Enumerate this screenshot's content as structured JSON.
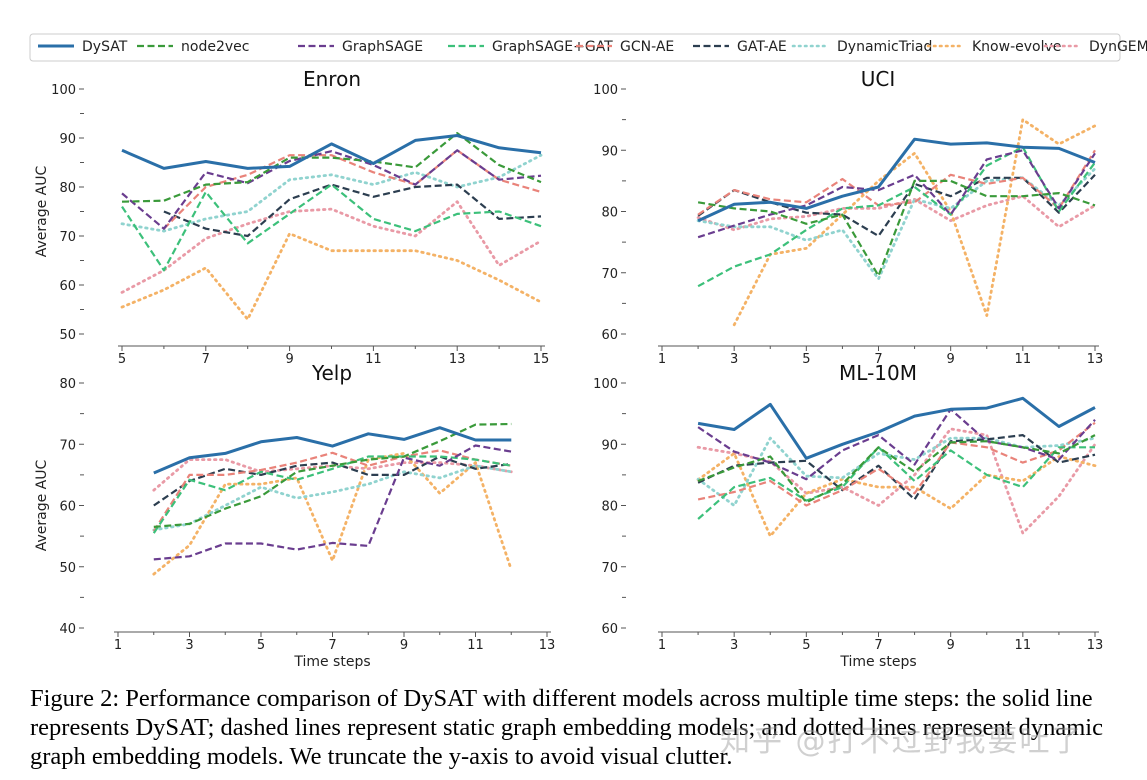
{
  "legend": [
    {
      "name": "DySAT",
      "color": "#2a6fa8",
      "dash": "solid"
    },
    {
      "name": "node2vec",
      "color": "#3a9a3a",
      "dash": "dashed"
    },
    {
      "name": "GraphSAGE",
      "color": "#6a3d8f",
      "dash": "dashed"
    },
    {
      "name": "GraphSAGE+GAT",
      "color": "#3cc07a",
      "dash": "dashed"
    },
    {
      "name": "GCN-AE",
      "color": "#e9837a",
      "dash": "dashed"
    },
    {
      "name": "GAT-AE",
      "color": "#2c3e50",
      "dash": "dashed"
    },
    {
      "name": "DynamicTriad",
      "color": "#90d3cf",
      "dash": "dotted"
    },
    {
      "name": "Know-evolve",
      "color": "#f4b266",
      "dash": "dotted"
    },
    {
      "name": "DynGEM",
      "color": "#e99aa6",
      "dash": "dotted"
    }
  ],
  "chart_data": [
    {
      "type": "line",
      "title": "Enron",
      "xlabel": "",
      "ylabel": "Average AUC",
      "xlim": [
        5,
        15
      ],
      "ylim": [
        50,
        100
      ],
      "xticks": [
        5,
        7,
        9,
        11,
        13,
        15
      ],
      "yticks": [
        50,
        60,
        70,
        80,
        90,
        100
      ],
      "x": [
        5,
        6,
        7,
        8,
        9,
        10,
        11,
        12,
        13,
        14,
        15
      ],
      "series": [
        {
          "name": "DySAT",
          "values": [
            87.5,
            83.8,
            85.2,
            83.8,
            84.2,
            88.8,
            84.8,
            89.5,
            90.5,
            88,
            87
          ]
        },
        {
          "name": "node2vec",
          "values": [
            77,
            77.2,
            80.5,
            81,
            86,
            86,
            85.2,
            84,
            91,
            84.5,
            81
          ]
        },
        {
          "name": "GraphSAGE",
          "values": [
            78.7,
            71.5,
            83,
            80.8,
            85.3,
            87.3,
            84.5,
            80.5,
            87.5,
            81.5,
            82.3
          ]
        },
        {
          "name": "GraphSAGE+GAT",
          "values": [
            76,
            63,
            79,
            68.5,
            74.5,
            80.5,
            73.5,
            71,
            74.5,
            75,
            72
          ]
        },
        {
          "name": "GCN-AE",
          "values": [
            null,
            71.5,
            80,
            82.5,
            86.5,
            86.5,
            83,
            80.5,
            87.5,
            81.5,
            79
          ]
        },
        {
          "name": "GAT-AE",
          "values": [
            null,
            75,
            71.5,
            70,
            77.5,
            80.5,
            78,
            80,
            80.5,
            73.5,
            74
          ]
        },
        {
          "name": "DynamicTriad",
          "values": [
            72.5,
            71,
            73.5,
            75,
            81.5,
            82.5,
            80.5,
            83,
            80,
            82,
            86.5
          ]
        },
        {
          "name": "Know-evolve",
          "values": [
            55.5,
            59,
            63.5,
            53,
            70.5,
            67,
            67,
            67,
            65,
            61,
            56.5
          ]
        },
        {
          "name": "DynGEM",
          "values": [
            58.5,
            63,
            69.5,
            72.5,
            75,
            75.5,
            72,
            70,
            77,
            64,
            69
          ]
        }
      ]
    },
    {
      "type": "line",
      "title": "UCI",
      "xlabel": "",
      "ylabel": "",
      "xlim": [
        1,
        13
      ],
      "ylim": [
        60,
        100
      ],
      "xticks": [
        1,
        3,
        5,
        7,
        9,
        11,
        13
      ],
      "yticks": [
        60,
        70,
        80,
        90,
        100
      ],
      "x": [
        2,
        3,
        4,
        5,
        6,
        7,
        8,
        9,
        10,
        11,
        12,
        13
      ],
      "series": [
        {
          "name": "DySAT",
          "values": [
            78.5,
            81.2,
            81.5,
            80.5,
            82.5,
            84,
            91.8,
            91,
            91.2,
            90.5,
            90.3,
            88
          ]
        },
        {
          "name": "node2vec",
          "values": [
            81.5,
            80.5,
            80,
            78,
            79.5,
            69.5,
            85,
            85,
            82.5,
            82.5,
            83,
            81
          ]
        },
        {
          "name": "GraphSAGE",
          "values": [
            75.8,
            77.7,
            79.5,
            81,
            84,
            83.5,
            86,
            79.5,
            88.5,
            90,
            80.5,
            89.5
          ]
        },
        {
          "name": "GraphSAGE+GAT",
          "values": [
            67.8,
            71,
            73,
            77,
            80.5,
            81,
            84,
            79.5,
            87.5,
            90.5,
            80,
            88
          ]
        },
        {
          "name": "GCN-AE",
          "values": [
            79.5,
            83.5,
            82,
            81.5,
            85.3,
            81,
            81.5,
            86,
            84.5,
            85.5,
            80.5,
            90
          ]
        },
        {
          "name": "GAT-AE",
          "values": [
            79.3,
            83.5,
            81.5,
            79.8,
            79.5,
            76,
            84.5,
            82.5,
            85.5,
            85.5,
            79.8,
            86
          ]
        },
        {
          "name": "DynamicTriad",
          "values": [
            78.5,
            77.5,
            77.5,
            75.3,
            77,
            69,
            82,
            80.5,
            85,
            85.5,
            81,
            87
          ]
        },
        {
          "name": "Know-evolve",
          "values": [
            null,
            61.5,
            73,
            74,
            79.5,
            85,
            89.5,
            80,
            63,
            95,
            91,
            94
          ]
        },
        {
          "name": "DynGEM",
          "values": [
            79,
            77,
            78.8,
            79.2,
            80.5,
            80.5,
            82,
            78.5,
            81,
            82.5,
            77.5,
            81
          ]
        }
      ]
    },
    {
      "type": "line",
      "title": "Yelp",
      "xlabel": "Time steps",
      "ylabel": "Average AUC",
      "xlim": [
        1,
        13
      ],
      "ylim": [
        40,
        80
      ],
      "xticks": [
        1,
        3,
        5,
        7,
        9,
        11,
        13
      ],
      "yticks": [
        40,
        50,
        60,
        70,
        80
      ],
      "x": [
        2,
        3,
        4,
        5,
        6,
        7,
        8,
        9,
        10,
        11,
        12
      ],
      "series": [
        {
          "name": "DySAT",
          "values": [
            65.3,
            67.8,
            68.5,
            70.4,
            71.1,
            69.7,
            71.7,
            70.8,
            72.7,
            70.7,
            70.7
          ]
        },
        {
          "name": "node2vec",
          "values": [
            56.5,
            57,
            59.5,
            61.5,
            65.5,
            66.5,
            67.5,
            68,
            70.5,
            73.2,
            73.3
          ]
        },
        {
          "name": "GraphSAGE",
          "values": [
            51.2,
            51.7,
            53.8,
            53.8,
            52.8,
            53.9,
            53.4,
            67.8,
            66.5,
            69.8,
            68.8
          ]
        },
        {
          "name": "GraphSAGE+GAT",
          "values": [
            55.5,
            64.2,
            62.5,
            65.5,
            64.2,
            66,
            68,
            68,
            68,
            67.5,
            66.5
          ]
        },
        {
          "name": "GCN-AE",
          "values": [
            55.8,
            65,
            65,
            65.8,
            67,
            68.6,
            66.5,
            68,
            69,
            67.5,
            66.5
          ]
        },
        {
          "name": "GAT-AE",
          "values": [
            60,
            64,
            66,
            65,
            66.5,
            67,
            65,
            65,
            68,
            66,
            66.8
          ]
        },
        {
          "name": "DynamicTriad",
          "values": [
            56,
            57,
            60,
            63,
            61.2,
            62.2,
            63.5,
            65.5,
            64.5,
            66.5,
            65.5
          ]
        },
        {
          "name": "Know-evolve",
          "values": [
            48.8,
            53.5,
            63.5,
            63.5,
            64.5,
            51,
            67.5,
            68.5,
            62,
            67,
            49.5
          ]
        },
        {
          "name": "DynGEM",
          "values": [
            62.5,
            67.5,
            67.5,
            65.5,
            66,
            66.5,
            66,
            67,
            67,
            66.5,
            65.5
          ]
        }
      ]
    },
    {
      "type": "line",
      "title": "ML-10M",
      "xlabel": "Time steps",
      "ylabel": "",
      "xlim": [
        1,
        13
      ],
      "ylim": [
        60,
        100
      ],
      "xticks": [
        1,
        3,
        5,
        7,
        9,
        11,
        13
      ],
      "yticks": [
        60,
        70,
        80,
        90,
        100
      ],
      "x": [
        2,
        3,
        4,
        5,
        6,
        7,
        8,
        9,
        10,
        11,
        12,
        13
      ],
      "series": [
        {
          "name": "DySAT",
          "values": [
            93.4,
            92.4,
            96.5,
            87.7,
            90,
            92,
            94.6,
            95.7,
            95.9,
            97.5,
            92.9,
            96
          ]
        },
        {
          "name": "node2vec",
          "values": [
            84,
            86.2,
            88,
            80.5,
            83.5,
            89.5,
            85.5,
            90.3,
            90.5,
            89.5,
            88.5,
            91.5
          ]
        },
        {
          "name": "GraphSAGE",
          "values": [
            92.8,
            88.8,
            87,
            84.3,
            89,
            91.5,
            86.7,
            95.7,
            90.5,
            89.5,
            87.5,
            94
          ]
        },
        {
          "name": "GraphSAGE+GAT",
          "values": [
            77.8,
            83,
            84.5,
            80.8,
            83,
            89.5,
            84,
            89,
            85,
            83,
            89.5,
            89.5
          ]
        },
        {
          "name": "GCN-AE",
          "values": [
            81,
            82.2,
            84,
            80,
            82.5,
            86,
            82,
            90.3,
            89.5,
            87,
            89,
            93.5
          ]
        },
        {
          "name": "GAT-AE",
          "values": [
            83.7,
            86.5,
            87,
            87.3,
            82.5,
            86.5,
            81,
            90.5,
            90.8,
            91.5,
            87,
            88.3
          ]
        },
        {
          "name": "DynamicTriad",
          "values": [
            84.3,
            80,
            91,
            84.8,
            84.5,
            88.5,
            87.5,
            91,
            91,
            89.5,
            89.8,
            91
          ]
        },
        {
          "name": "Know-evolve",
          "values": [
            84.2,
            88.5,
            75,
            82,
            84.3,
            83,
            83,
            79.5,
            85,
            84,
            88,
            86.5
          ]
        },
        {
          "name": "DynGEM",
          "values": [
            89.5,
            88.5,
            87.2,
            82,
            83,
            80,
            85,
            92.5,
            91.5,
            75.5,
            81.5,
            90
          ]
        }
      ]
    }
  ],
  "caption": "Figure 2: Performance comparison of DySAT with different models across multiple time steps: the solid line represents DySAT; dashed lines represent static graph embedding models; and dotted lines represent dynamic graph embedding models. We truncate the y-axis to avoid visual clutter.",
  "watermark": "知乎 @打不过野我要吐了"
}
